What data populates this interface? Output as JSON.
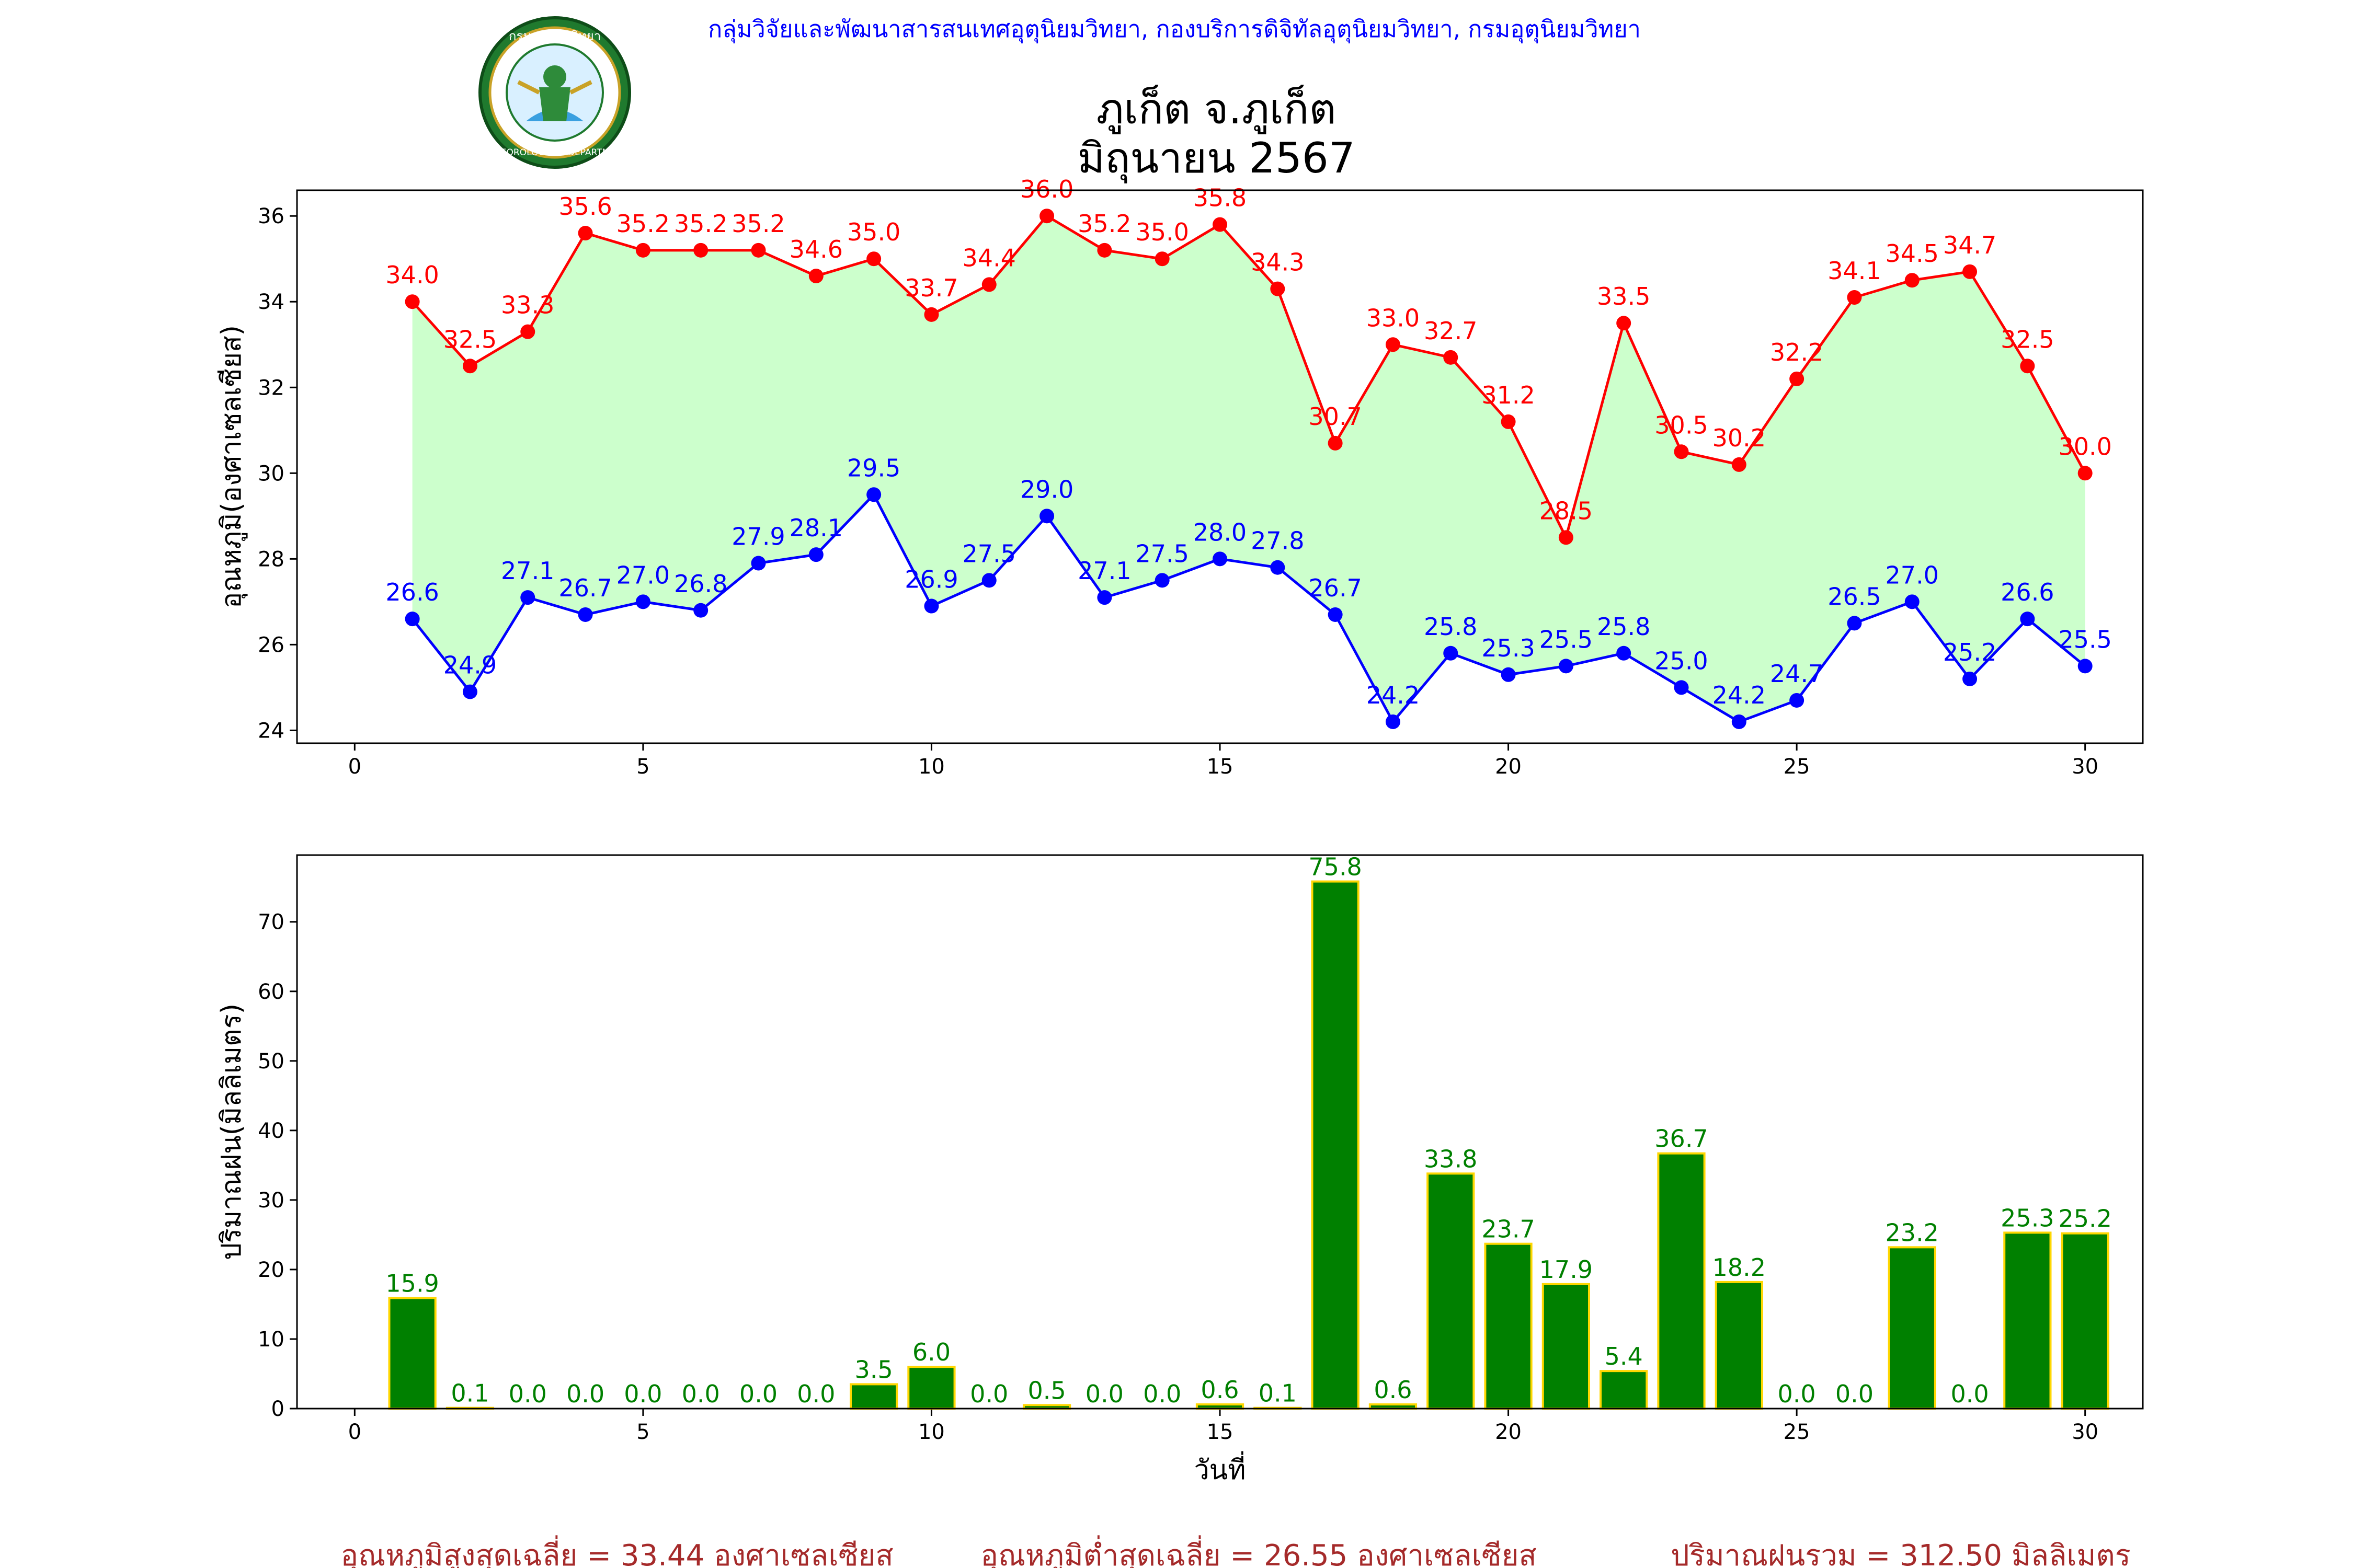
{
  "header": {
    "credit": "กลุ่มวิจัยและพัฒนาสารสนเทศอุตุนิยมวิทยา, กองบริการดิจิทัลอุตุนิยมวิทยา, กรมอุตุนิยมวิทยา",
    "logo_text_top": "กรมอุตุนิยมวิทยา",
    "logo_text_bottom": "METEOROLOGICAL DEPARTMENT",
    "title_line1": "ภูเก็ต จ.ภูเก็ต",
    "title_line2": "มิถุนายน 2567"
  },
  "colors": {
    "credit": "#0000ff",
    "max": "#ff0000",
    "min": "#0000ff",
    "fill": "#ccffcc",
    "bar": "#008000",
    "bar_edge": "#ffd700",
    "summary": "#a52a2a"
  },
  "chart_data": [
    {
      "type": "line",
      "title": "ภูเก็ต จ.ภูเก็ต มิถุนายน 2567",
      "ylabel": "อุณหภูมิ(องศาเซลเซียส)",
      "xlabel": "",
      "xlim": [
        -1,
        31
      ],
      "ylim": [
        23.7,
        36.6
      ],
      "xticks": [
        0,
        5,
        10,
        15,
        20,
        25,
        30
      ],
      "yticks": [
        24,
        26,
        28,
        30,
        32,
        34,
        36
      ],
      "grid": false,
      "x": [
        1,
        2,
        3,
        4,
        5,
        6,
        7,
        8,
        9,
        10,
        11,
        12,
        13,
        14,
        15,
        16,
        17,
        18,
        19,
        20,
        21,
        22,
        23,
        24,
        25,
        26,
        27,
        28,
        29,
        30
      ],
      "series": [
        {
          "values": [
            34.0,
            32.5,
            33.3,
            35.6,
            35.2,
            35.2,
            35.2,
            34.6,
            35.0,
            33.7,
            34.4,
            36.0,
            35.2,
            35.0,
            35.8,
            34.3,
            30.7,
            33.0,
            32.7,
            31.2,
            28.5,
            33.5,
            30.5,
            30.2,
            32.2,
            34.1,
            34.5,
            34.7,
            32.5,
            30.0
          ]
        },
        {
          "values": [
            26.6,
            24.9,
            27.1,
            26.7,
            27.0,
            26.8,
            27.9,
            28.1,
            29.5,
            26.9,
            27.5,
            29.0,
            27.1,
            27.5,
            28.0,
            27.8,
            26.7,
            24.2,
            25.8,
            25.3,
            25.5,
            25.8,
            25.0,
            24.2,
            24.7,
            26.5,
            27.0,
            25.2,
            26.6,
            25.5
          ]
        }
      ]
    },
    {
      "type": "bar",
      "title": "",
      "ylabel": "ปริมาณฝน(มิลลิเมตร)",
      "xlabel": "วันที่",
      "xlim": [
        -1,
        31
      ],
      "ylim": [
        0,
        79.6
      ],
      "xticks": [
        0,
        5,
        10,
        15,
        20,
        25,
        30
      ],
      "yticks": [
        0,
        10,
        20,
        30,
        40,
        50,
        60,
        70
      ],
      "grid": false,
      "x": [
        1,
        2,
        3,
        4,
        5,
        6,
        7,
        8,
        9,
        10,
        11,
        12,
        13,
        14,
        15,
        16,
        17,
        18,
        19,
        20,
        21,
        22,
        23,
        24,
        25,
        26,
        27,
        28,
        29,
        30
      ],
      "values": [
        15.9,
        0.1,
        0.0,
        0.0,
        0.0,
        0.0,
        0.0,
        0.0,
        3.5,
        6.0,
        0.0,
        0.5,
        0.0,
        0.0,
        0.6,
        0.1,
        75.8,
        0.6,
        33.8,
        23.7,
        17.9,
        5.4,
        36.7,
        18.2,
        0.0,
        0.0,
        23.2,
        0.0,
        25.3,
        25.2
      ]
    }
  ],
  "summary": {
    "avg_max": "อุณหภูมิสูงสุดเฉลี่ย = 33.44 องศาเซลเซียส",
    "avg_min": "อุณหภูมิต่ำสุดเฉลี่ย = 26.55 องศาเซลเซียส",
    "total_rain": "ปริมาณฝนรวม = 312.50 มิลลิเมตร"
  }
}
